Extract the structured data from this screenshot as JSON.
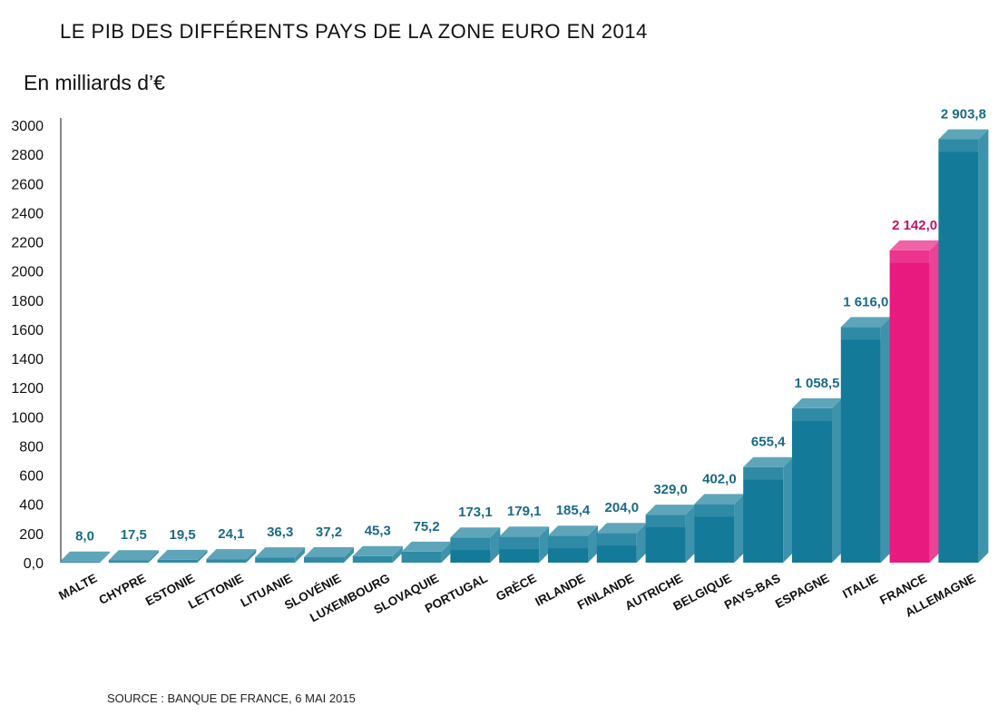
{
  "title": "LE PIB DES DIFFÉRENTS PAYS DE LA ZONE EURO EN 2014",
  "unit_label": "En milliards d’€",
  "source": "SOURCE : BANQUE DE FRANCE, 6 MAI 2015",
  "colors": {
    "bar": "#137a9a",
    "bar_highlight": "#e8197f",
    "label": "#1b6a86",
    "label_highlight": "#c0136d"
  },
  "chart_data": {
    "type": "bar",
    "title": "LE PIB DES DIFFÉRENTS PAYS DE LA ZONE EURO EN 2014",
    "ylabel": "En milliards d’€",
    "ylim": [
      0,
      3000
    ],
    "yticks": [
      "0,0",
      "200",
      "400",
      "600",
      "800",
      "1000",
      "1200",
      "1400",
      "1600",
      "1800",
      "2000",
      "2200",
      "2400",
      "2600",
      "2800",
      "3000"
    ],
    "ytick_values": [
      0,
      200,
      400,
      600,
      800,
      1000,
      1200,
      1400,
      1600,
      1800,
      2000,
      2200,
      2400,
      2600,
      2800,
      3000
    ],
    "categories": [
      "MALTE",
      "CHYPRE",
      "ESTONIE",
      "LETTONIE",
      "LITUANIE",
      "SLOVÉNIE",
      "LUXEMBOURG",
      "SLOVAQUIE",
      "PORTUGAL",
      "GRÈCE",
      "IRLANDE",
      "FINLANDE",
      "AUTRICHE",
      "BELGIQUE",
      "PAYS-BAS",
      "ESPAGNE",
      "ITALIE",
      "FRANCE",
      "ALLEMAGNE"
    ],
    "values": [
      8.0,
      17.5,
      19.5,
      24.1,
      36.3,
      37.2,
      45.3,
      75.2,
      173.1,
      179.1,
      185.4,
      204.0,
      329.0,
      402.0,
      655.4,
      1058.5,
      1616.0,
      2142.0,
      2903.8
    ],
    "value_labels": [
      "8,0",
      "17,5",
      "19,5",
      "24,1",
      "36,3",
      "37,2",
      "45,3",
      "75,2",
      "173,1",
      "179,1",
      "185,4",
      "204,0",
      "329,0",
      "402,0",
      "655,4",
      "1 058,5",
      "1 616,0",
      "2 142,0",
      "2 903,8"
    ],
    "highlight": "FRANCE",
    "grid": false,
    "legend": "none"
  }
}
